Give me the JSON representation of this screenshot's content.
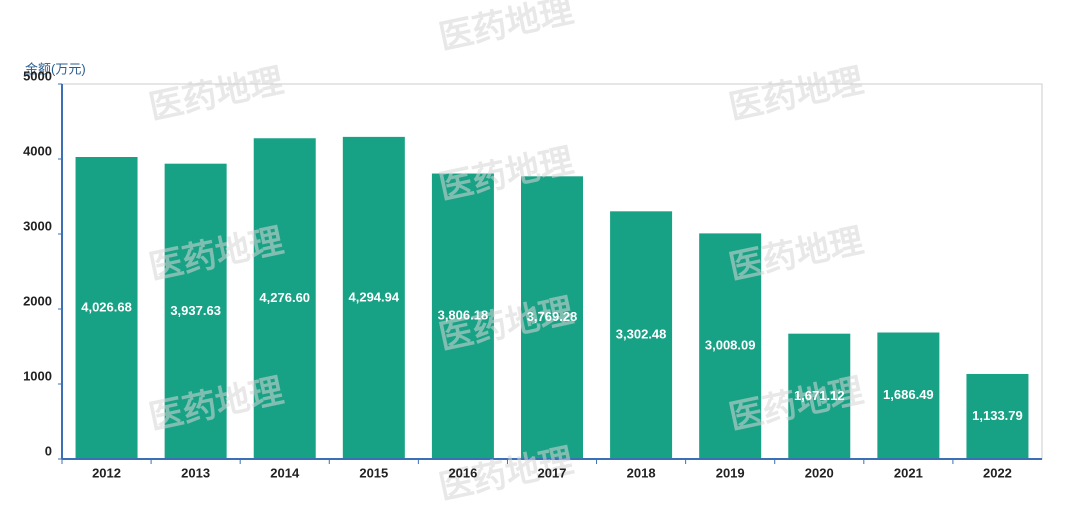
{
  "chart_data": {
    "type": "bar",
    "y_axis_label": "金额(万元)",
    "categories": [
      "2012",
      "2013",
      "2014",
      "2015",
      "2016",
      "2017",
      "2018",
      "2019",
      "2020",
      "2021",
      "2022"
    ],
    "values": [
      4026.68,
      3937.63,
      4276.6,
      4294.94,
      3806.18,
      3769.28,
      3302.48,
      3008.09,
      1671.12,
      1686.49,
      1133.79
    ],
    "value_labels": [
      "4,026.68",
      "3,937.63",
      "4,276.60",
      "4,294.94",
      "3,806.18",
      "3,769.28",
      "3,302.48",
      "3,008.09",
      "1,671.12",
      "1,686.49",
      "1,133.79"
    ],
    "color": "#17a185",
    "ylim": [
      0,
      5000
    ],
    "yticks": [
      0,
      1000,
      2000,
      3000,
      4000,
      5000
    ],
    "watermark": "医药地理"
  }
}
